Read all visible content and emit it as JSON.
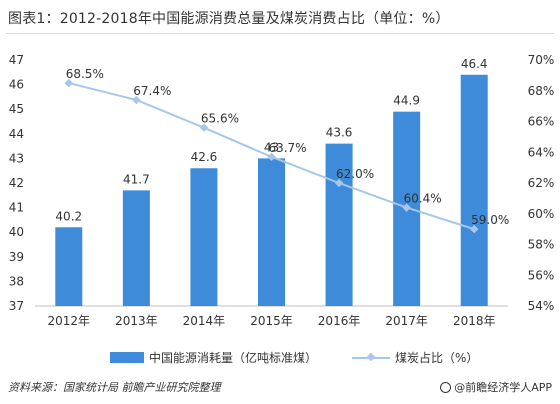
{
  "title": "图表1：2012-2018年中国能源消费总量及煤炭消费占比（单位：%）",
  "source": "资料来源：国家统计局 前瞻产业研究院整理",
  "brand": "@前瞻经济学人APP",
  "colors": {
    "bar": "#3d8bd9",
    "line": "#a7c6ea",
    "axis_text": "#333333"
  },
  "chart_data": {
    "type": "bar",
    "categories": [
      "2012年",
      "2013年",
      "2014年",
      "2015年",
      "2016年",
      "2017年",
      "2018年"
    ],
    "series": [
      {
        "name": "中国能源消耗量（亿吨标准煤）",
        "type": "bar",
        "axis": "left",
        "values": [
          40.2,
          41.7,
          42.6,
          43,
          43.6,
          44.9,
          46.4
        ],
        "labels": [
          "40.2",
          "41.7",
          "42.6",
          "43",
          "43.6",
          "44.9",
          "46.4"
        ]
      },
      {
        "name": "煤炭占比（%）",
        "type": "line",
        "axis": "right",
        "values": [
          68.5,
          67.4,
          65.6,
          63.7,
          62.0,
          60.4,
          59.0
        ],
        "labels": [
          "68.5%",
          "67.4%",
          "65.6%",
          "63.7%",
          "62.0%",
          "60.4%",
          "59.0%"
        ]
      }
    ],
    "y_left": {
      "min": 37,
      "max": 47,
      "ticks": [
        "37",
        "38",
        "39",
        "40",
        "41",
        "42",
        "43",
        "44",
        "45",
        "46",
        "47"
      ]
    },
    "y_right": {
      "min": 54,
      "max": 70,
      "ticks": [
        "54%",
        "56%",
        "58%",
        "60%",
        "62%",
        "64%",
        "66%",
        "68%",
        "70%"
      ]
    },
    "grid": false,
    "legend": "bottom"
  }
}
